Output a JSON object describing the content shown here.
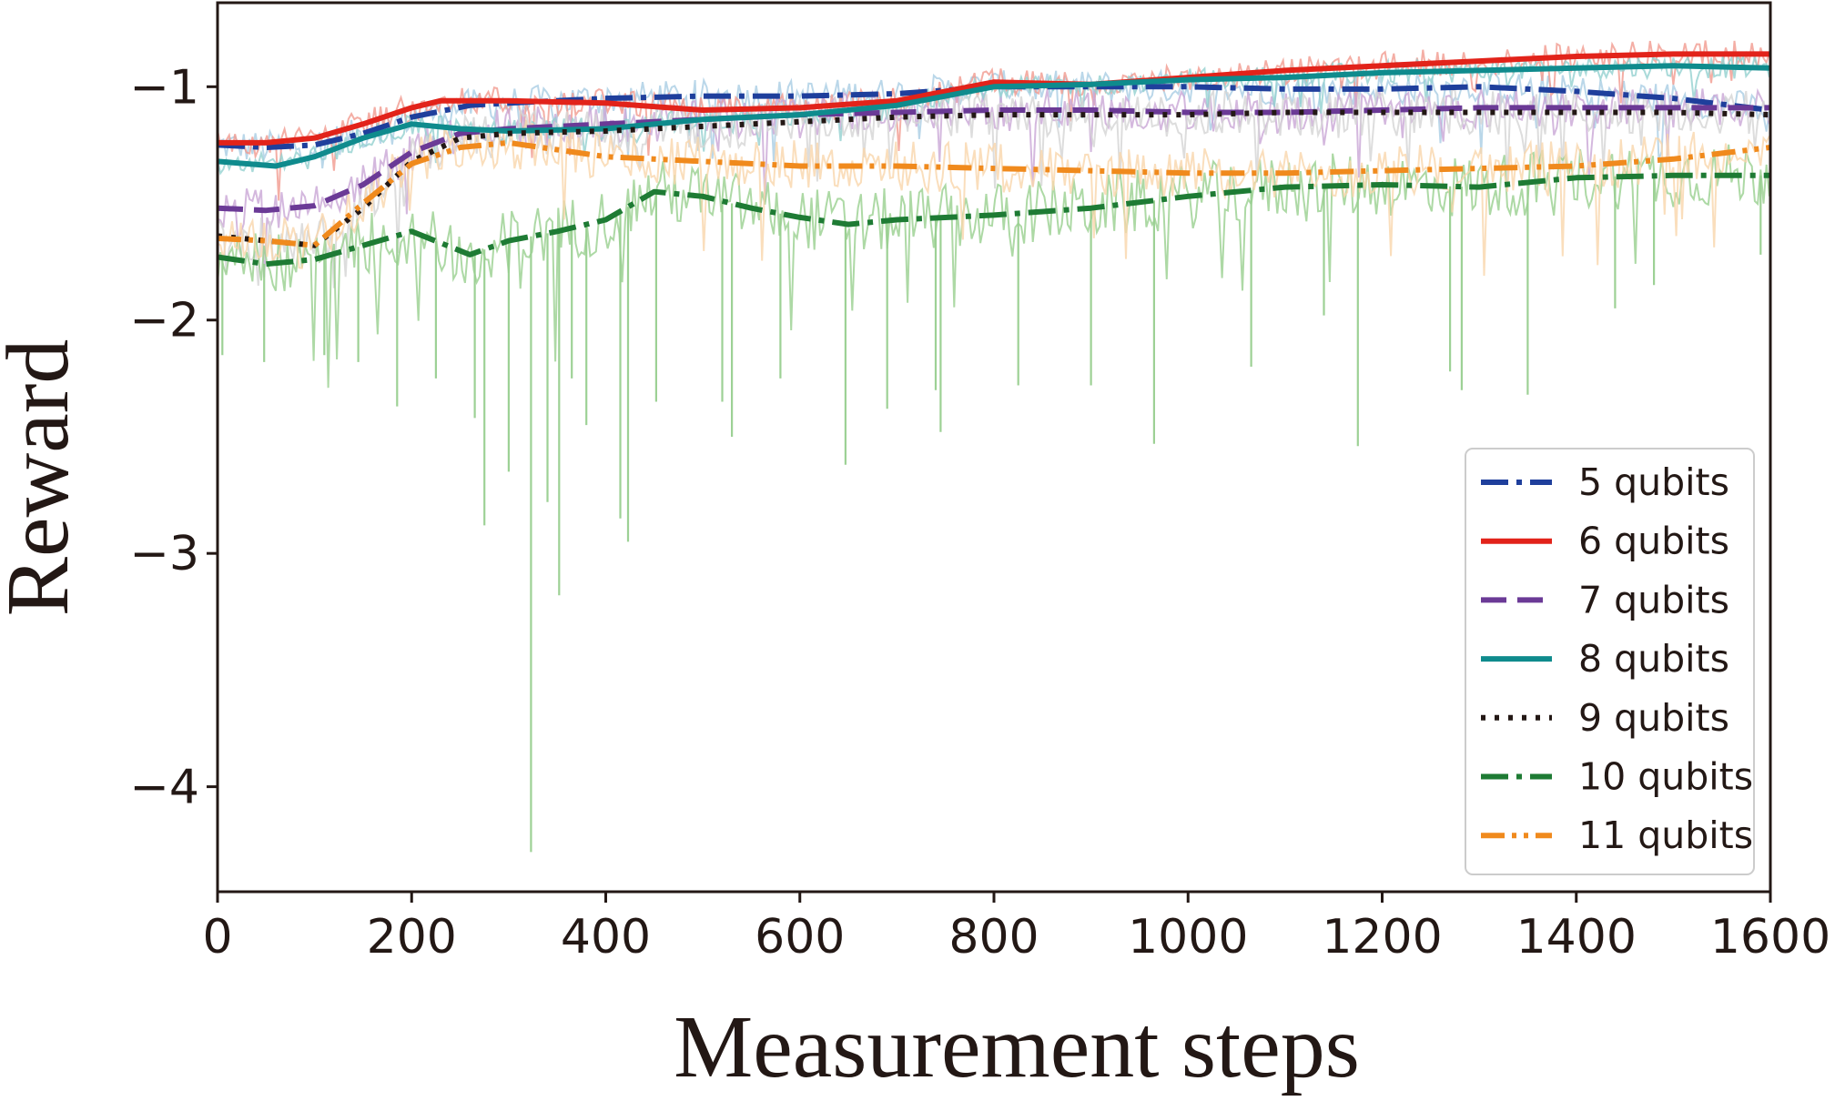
{
  "chart_data": {
    "type": "line",
    "xlabel": "Measurement steps",
    "ylabel": "Reward",
    "xlim": [
      0,
      1600
    ],
    "ylim": [
      -4.45,
      -0.64
    ],
    "xticks": [
      0,
      200,
      400,
      600,
      800,
      1000,
      1200,
      1400,
      1600
    ],
    "xtick_labels": [
      "0",
      "200",
      "400",
      "600",
      "800",
      "1000",
      "1200",
      "1400",
      "1600"
    ],
    "yticks": [
      -4,
      -3,
      -2,
      -1
    ],
    "ytick_labels": [
      "−4",
      "−3",
      "−2",
      "−1"
    ],
    "grid": false,
    "legend_position": "lower-right",
    "series": [
      {
        "name": "5 qubits",
        "color": "#1f3f9c",
        "dash": "dashdot",
        "raw_color": "#a9cde3",
        "noise": 0.07,
        "x": [
          0,
          50,
          100,
          150,
          200,
          260,
          300,
          400,
          500,
          600,
          700,
          800,
          900,
          1000,
          1100,
          1200,
          1300,
          1400,
          1500,
          1600
        ],
        "y": [
          -1.25,
          -1.26,
          -1.25,
          -1.2,
          -1.13,
          -1.08,
          -1.07,
          -1.05,
          -1.04,
          -1.04,
          -1.03,
          -1.0,
          -1.0,
          -1.0,
          -1.01,
          -1.01,
          -1.0,
          -1.02,
          -1.05,
          -1.1
        ]
      },
      {
        "name": "6 qubits",
        "color": "#e2231a",
        "dash": "solid",
        "raw_color": "#f19a8f",
        "noise": 0.06,
        "x": [
          0,
          50,
          100,
          150,
          200,
          230,
          300,
          400,
          500,
          600,
          700,
          800,
          900,
          1000,
          1100,
          1200,
          1300,
          1400,
          1500,
          1600
        ],
        "y": [
          -1.24,
          -1.24,
          -1.22,
          -1.16,
          -1.09,
          -1.06,
          -1.06,
          -1.07,
          -1.1,
          -1.09,
          -1.06,
          -0.98,
          -0.99,
          -0.96,
          -0.93,
          -0.91,
          -0.89,
          -0.87,
          -0.86,
          -0.86
        ]
      },
      {
        "name": "7 qubits",
        "color": "#6b3a96",
        "dash": "dash",
        "raw_color": "#c9a6d6",
        "noise": 0.09,
        "x": [
          0,
          50,
          100,
          150,
          200,
          250,
          300,
          400,
          500,
          600,
          700,
          800,
          900,
          1000,
          1100,
          1200,
          1300,
          1400,
          1500,
          1600
        ],
        "y": [
          -1.52,
          -1.53,
          -1.51,
          -1.42,
          -1.28,
          -1.2,
          -1.18,
          -1.16,
          -1.14,
          -1.12,
          -1.11,
          -1.1,
          -1.1,
          -1.11,
          -1.11,
          -1.1,
          -1.09,
          -1.09,
          -1.09,
          -1.09
        ]
      },
      {
        "name": "8 qubits",
        "color": "#0f8b8d",
        "dash": "solid",
        "raw_color": "#93d1cf",
        "noise": 0.05,
        "x": [
          0,
          60,
          100,
          150,
          200,
          250,
          300,
          400,
          500,
          600,
          700,
          800,
          900,
          1000,
          1100,
          1200,
          1300,
          1400,
          1500,
          1600
        ],
        "y": [
          -1.32,
          -1.34,
          -1.3,
          -1.22,
          -1.16,
          -1.18,
          -1.19,
          -1.18,
          -1.14,
          -1.12,
          -1.08,
          -1.0,
          -0.99,
          -0.97,
          -0.96,
          -0.94,
          -0.93,
          -0.92,
          -0.91,
          -0.92
        ]
      },
      {
        "name": "9 qubits",
        "color": "#231815",
        "dash": "dot",
        "raw_color": "#d4d4d4",
        "noise": 0.1,
        "x": [
          0,
          50,
          100,
          150,
          200,
          250,
          300,
          400,
          500,
          600,
          700,
          800,
          900,
          1000,
          1100,
          1200,
          1300,
          1400,
          1500,
          1600
        ],
        "y": [
          -1.64,
          -1.66,
          -1.68,
          -1.52,
          -1.32,
          -1.22,
          -1.2,
          -1.19,
          -1.17,
          -1.15,
          -1.13,
          -1.12,
          -1.12,
          -1.12,
          -1.11,
          -1.11,
          -1.11,
          -1.11,
          -1.11,
          -1.12
        ]
      },
      {
        "name": "10 qubits",
        "color": "#1e7b34",
        "dash": "dashdot",
        "raw_color": "#98cf8f",
        "noise": 0.14,
        "x": [
          0,
          50,
          100,
          150,
          200,
          260,
          300,
          350,
          400,
          450,
          500,
          550,
          600,
          650,
          700,
          800,
          900,
          1000,
          1100,
          1200,
          1300,
          1400,
          1500,
          1600
        ],
        "y": [
          -1.73,
          -1.76,
          -1.74,
          -1.68,
          -1.62,
          -1.72,
          -1.66,
          -1.62,
          -1.57,
          -1.45,
          -1.47,
          -1.52,
          -1.56,
          -1.59,
          -1.57,
          -1.55,
          -1.52,
          -1.47,
          -1.43,
          -1.42,
          -1.43,
          -1.39,
          -1.38,
          -1.38
        ]
      },
      {
        "name": "11 qubits",
        "color": "#f08a1d",
        "dash": "dashdotdot",
        "raw_color": "#f9d6ab",
        "noise": 0.11,
        "x": [
          0,
          50,
          100,
          150,
          200,
          250,
          300,
          400,
          500,
          600,
          700,
          800,
          900,
          1000,
          1100,
          1200,
          1300,
          1400,
          1500,
          1600
        ],
        "y": [
          -1.65,
          -1.66,
          -1.68,
          -1.5,
          -1.33,
          -1.26,
          -1.24,
          -1.3,
          -1.32,
          -1.34,
          -1.34,
          -1.35,
          -1.36,
          -1.37,
          -1.37,
          -1.36,
          -1.35,
          -1.34,
          -1.31,
          -1.26
        ]
      }
    ],
    "spikes": [
      {
        "series": "10 qubits",
        "x": 5,
        "y": -2.15
      },
      {
        "series": "10 qubits",
        "x": 48,
        "y": -2.18
      },
      {
        "series": "10 qubits",
        "x": 110,
        "y": -2.15
      },
      {
        "series": "10 qubits",
        "x": 145,
        "y": -2.18
      },
      {
        "series": "10 qubits",
        "x": 185,
        "y": -2.37
      },
      {
        "series": "10 qubits",
        "x": 225,
        "y": -2.25
      },
      {
        "series": "10 qubits",
        "x": 265,
        "y": -2.42
      },
      {
        "series": "10 qubits",
        "x": 275,
        "y": -2.88
      },
      {
        "series": "10 qubits",
        "x": 300,
        "y": -2.65
      },
      {
        "series": "10 qubits",
        "x": 323,
        "y": -4.28
      },
      {
        "series": "10 qubits",
        "x": 340,
        "y": -2.78
      },
      {
        "series": "10 qubits",
        "x": 352,
        "y": -3.18
      },
      {
        "series": "10 qubits",
        "x": 365,
        "y": -2.25
      },
      {
        "series": "10 qubits",
        "x": 380,
        "y": -2.45
      },
      {
        "series": "10 qubits",
        "x": 415,
        "y": -2.85
      },
      {
        "series": "10 qubits",
        "x": 423,
        "y": -2.95
      },
      {
        "series": "10 qubits",
        "x": 452,
        "y": -2.35
      },
      {
        "series": "10 qubits",
        "x": 520,
        "y": -2.35
      },
      {
        "series": "10 qubits",
        "x": 530,
        "y": -2.5
      },
      {
        "series": "10 qubits",
        "x": 580,
        "y": -2.25
      },
      {
        "series": "10 qubits",
        "x": 647,
        "y": -2.62
      },
      {
        "series": "10 qubits",
        "x": 690,
        "y": -2.38
      },
      {
        "series": "10 qubits",
        "x": 740,
        "y": -2.3
      },
      {
        "series": "10 qubits",
        "x": 745,
        "y": -2.48
      },
      {
        "series": "10 qubits",
        "x": 825,
        "y": -2.28
      },
      {
        "series": "10 qubits",
        "x": 900,
        "y": -2.28
      },
      {
        "series": "10 qubits",
        "x": 965,
        "y": -2.53
      },
      {
        "series": "10 qubits",
        "x": 1065,
        "y": -2.2
      },
      {
        "series": "10 qubits",
        "x": 1140,
        "y": -1.98
      },
      {
        "series": "10 qubits",
        "x": 1175,
        "y": -2.54
      },
      {
        "series": "10 qubits",
        "x": 1270,
        "y": -2.22
      },
      {
        "series": "10 qubits",
        "x": 1282,
        "y": -2.3
      },
      {
        "series": "10 qubits",
        "x": 1350,
        "y": -2.32
      },
      {
        "series": "10 qubits",
        "x": 1440,
        "y": -1.95
      },
      {
        "series": "10 qubits",
        "x": 1480,
        "y": -1.85
      },
      {
        "series": "10 qubits",
        "x": 1590,
        "y": -1.72
      }
    ]
  }
}
